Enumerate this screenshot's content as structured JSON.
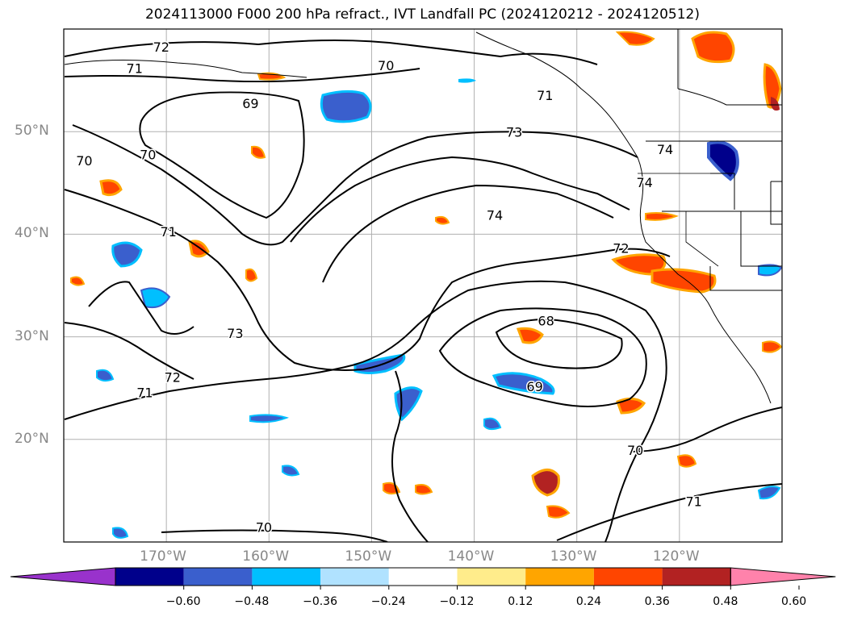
{
  "title": "2024113000 F000 200 hPa refract., IVT Landfall PC (2024120212 - 2024120512)",
  "map": {
    "lon_range": [
      -180,
      -110
    ],
    "lat_range": [
      10,
      60
    ],
    "lat_labels": [
      {
        "lat": 50,
        "text": "50°N"
      },
      {
        "lat": 40,
        "text": "40°N"
      },
      {
        "lat": 30,
        "text": "30°N"
      },
      {
        "lat": 20,
        "text": "20°N"
      }
    ],
    "lon_labels": [
      {
        "lon": -170,
        "text": "170°W"
      },
      {
        "lon": -160,
        "text": "160°W"
      },
      {
        "lon": -150,
        "text": "150°W"
      },
      {
        "lon": -140,
        "text": "140°W"
      },
      {
        "lon": -130,
        "text": "130°W"
      },
      {
        "lon": -120,
        "text": "120°W"
      }
    ],
    "contour_labels": [
      {
        "text": "72",
        "lon": -170.5,
        "lat": 57.8
      },
      {
        "text": "71",
        "lon": -173.1,
        "lat": 55.7
      },
      {
        "text": "70",
        "lon": -148.6,
        "lat": 56.0
      },
      {
        "text": "69",
        "lon": -161.8,
        "lat": 52.3
      },
      {
        "text": "71",
        "lon": -133.1,
        "lat": 53.1
      },
      {
        "text": "73",
        "lon": -136.1,
        "lat": 49.5
      },
      {
        "text": "70",
        "lon": -178.0,
        "lat": 46.7
      },
      {
        "text": "70",
        "lon": -171.8,
        "lat": 47.3
      },
      {
        "text": "74",
        "lon": -121.4,
        "lat": 47.8
      },
      {
        "text": "74",
        "lon": -123.4,
        "lat": 44.6
      },
      {
        "text": "71",
        "lon": -169.8,
        "lat": 39.8
      },
      {
        "text": "74",
        "lon": -138.0,
        "lat": 41.4
      },
      {
        "text": "72",
        "lon": -125.7,
        "lat": 38.2
      },
      {
        "text": "73",
        "lon": -163.3,
        "lat": 29.9
      },
      {
        "text": "68",
        "lon": -133.0,
        "lat": 31.1
      },
      {
        "text": "72",
        "lon": -169.4,
        "lat": 25.6
      },
      {
        "text": "71",
        "lon": -172.1,
        "lat": 24.1
      },
      {
        "text": "69",
        "lon": -134.1,
        "lat": 24.7
      },
      {
        "text": "70",
        "lon": -124.3,
        "lat": 18.5
      },
      {
        "text": "71",
        "lon": -118.6,
        "lat": 13.5
      },
      {
        "text": "70",
        "lon": -160.5,
        "lat": 11.0
      }
    ]
  },
  "colorbar": {
    "colors": [
      "#9932cc",
      "#00008b",
      "#3a5fcd",
      "#00bfff",
      "#b0e2ff",
      "#ffffff",
      "#ffec8b",
      "#ffa500",
      "#ff4500",
      "#b22222",
      "#ff82ab"
    ],
    "ticks": [
      "−0.60",
      "−0.48",
      "−0.36",
      "−0.24",
      "−0.12",
      "0.12",
      "0.24",
      "0.36",
      "0.48",
      "0.60"
    ]
  }
}
